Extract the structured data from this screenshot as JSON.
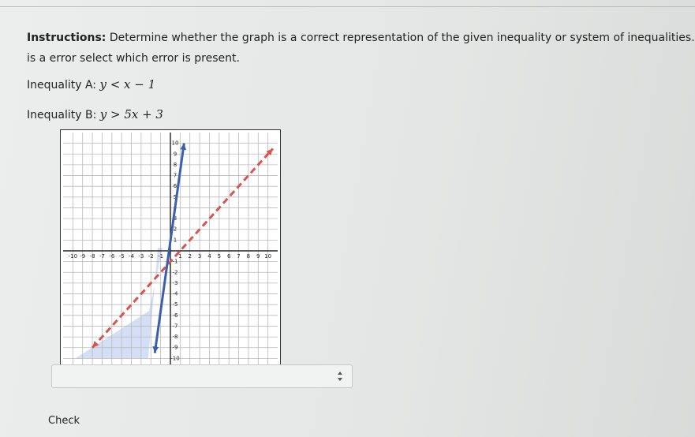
{
  "instructions": {
    "label": "Instructions:",
    "text": "Determine whether the graph is a correct representation of the given inequality or system of inequalities. If th",
    "line2": "is a error select which error is present."
  },
  "inequalities": [
    {
      "label": "Inequality A:",
      "math": "y < x − 1"
    },
    {
      "label": "Inequality B:",
      "math": "y > 5x + 3"
    }
  ],
  "graph": {
    "xlim": [
      -11,
      11
    ],
    "ylim": [
      -11,
      11
    ],
    "xticks": [
      -10,
      -9,
      -8,
      -7,
      -6,
      -5,
      -4,
      -3,
      -2,
      -1,
      1,
      2,
      3,
      4,
      5,
      6,
      7,
      8,
      9,
      10
    ],
    "yticks": [
      -10,
      -9,
      -8,
      -7,
      -6,
      -5,
      -4,
      -3,
      -2,
      -1,
      1,
      2,
      3,
      4,
      5,
      6,
      7,
      8,
      9,
      10
    ],
    "lines": [
      {
        "color": "#d9534f",
        "dashed": true,
        "x": [
          -8,
          10.5
        ],
        "y": [
          -9,
          9.5
        ]
      },
      {
        "color": "#3b5fb0",
        "dashed": false,
        "x": [
          -1.6,
          1.4
        ],
        "y": [
          -9.5,
          10
        ]
      }
    ]
  },
  "button": "Check"
}
